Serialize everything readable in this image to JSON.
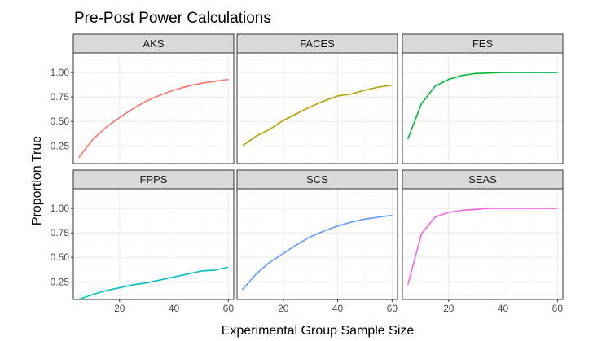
{
  "chart_data": {
    "type": "line",
    "title": "Pre-Post Power Calculations",
    "xlabel": "Experimental Group Sample Size",
    "ylabel": "Proportion True",
    "xlim": [
      3,
      62
    ],
    "ylim": [
      0.07,
      1.2
    ],
    "x_ticks": [
      20,
      40,
      60
    ],
    "x_tick_labels": [
      "20",
      "40",
      "60"
    ],
    "y_ticks": [
      0.25,
      0.5,
      0.75,
      1.0
    ],
    "y_tick_labels": [
      "0.25",
      "0.50",
      "0.75",
      "1.00"
    ],
    "grid": true,
    "legend": "none",
    "panel_colors": {
      "background": "#ffffff",
      "strip": "#d9d9d9",
      "border": "#333333",
      "grid_major": "#ebebeb",
      "grid_minor": "#f5f5f5"
    },
    "x": [
      5,
      10,
      15,
      20,
      25,
      30,
      35,
      40,
      45,
      50,
      55,
      60
    ],
    "panels": [
      {
        "name": "AKS",
        "color": "#F8766D",
        "values": [
          0.13,
          0.31,
          0.44,
          0.54,
          0.63,
          0.71,
          0.77,
          0.82,
          0.86,
          0.89,
          0.91,
          0.93
        ]
      },
      {
        "name": "FACES",
        "color": "#B79F00",
        "values": [
          0.25,
          0.35,
          0.42,
          0.51,
          0.58,
          0.65,
          0.71,
          0.76,
          0.78,
          0.82,
          0.85,
          0.87
        ]
      },
      {
        "name": "FES",
        "color": "#00BA38",
        "values": [
          0.32,
          0.68,
          0.86,
          0.93,
          0.97,
          0.99,
          0.995,
          1.0,
          1.0,
          1.0,
          1.0,
          1.0
        ]
      },
      {
        "name": "FPPS",
        "color": "#00BFC4",
        "values": [
          0.07,
          0.12,
          0.16,
          0.19,
          0.22,
          0.24,
          0.27,
          0.3,
          0.33,
          0.36,
          0.37,
          0.4
        ]
      },
      {
        "name": "SCS",
        "color": "#619CFF",
        "values": [
          0.17,
          0.33,
          0.45,
          0.54,
          0.63,
          0.71,
          0.77,
          0.82,
          0.86,
          0.89,
          0.91,
          0.93
        ]
      },
      {
        "name": "SEAS",
        "color": "#F564E3",
        "values": [
          0.22,
          0.74,
          0.91,
          0.96,
          0.98,
          0.99,
          1.0,
          1.0,
          1.0,
          1.0,
          1.0,
          1.0
        ]
      }
    ]
  }
}
